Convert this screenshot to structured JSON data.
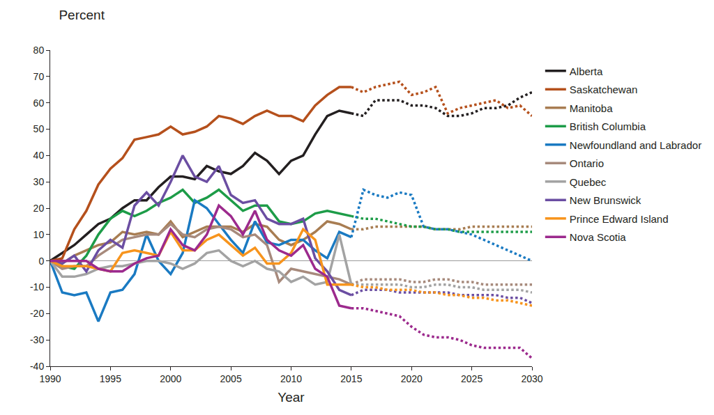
{
  "chart_data": {
    "type": "line",
    "title": "Percent",
    "x_label": "Year",
    "x": [
      1990,
      1991,
      1992,
      1993,
      1994,
      1995,
      1996,
      1997,
      1998,
      1999,
      2000,
      2001,
      2002,
      2003,
      2004,
      2005,
      2006,
      2007,
      2008,
      2009,
      2010,
      2011,
      2012,
      2013,
      2014,
      2015,
      2016,
      2017,
      2018,
      2019,
      2020,
      2021,
      2022,
      2023,
      2024,
      2025,
      2026,
      2027,
      2028,
      2029,
      2030
    ],
    "xlim": [
      1990,
      2030
    ],
    "xticks": [
      1990,
      1995,
      2000,
      2005,
      2010,
      2015,
      2020,
      2025,
      2030
    ],
    "ylim": [
      -40,
      80
    ],
    "yticks": [
      -40,
      -30,
      -20,
      -10,
      0,
      10,
      20,
      30,
      40,
      50,
      60,
      70,
      80
    ],
    "grid": false,
    "legend": "right",
    "series": [
      {
        "name": "Alberta",
        "color": "#231f20",
        "line_style": "solid",
        "values": [
          0,
          3,
          6,
          10,
          14,
          16,
          20,
          23,
          23,
          28,
          32,
          32,
          31,
          36,
          34,
          33,
          36,
          41,
          38,
          33,
          38,
          40,
          48,
          55,
          57,
          56,
          null,
          null,
          null,
          null,
          null,
          null,
          null,
          null,
          null,
          null,
          null,
          null,
          null,
          null,
          null
        ]
      },
      {
        "name": "Alberta",
        "color": "#231f20",
        "line_style": "dot",
        "values": [
          null,
          null,
          null,
          null,
          null,
          null,
          null,
          null,
          null,
          null,
          null,
          null,
          null,
          null,
          null,
          null,
          null,
          null,
          null,
          null,
          null,
          null,
          null,
          null,
          null,
          56,
          55,
          61,
          61,
          61,
          59,
          59,
          58,
          55,
          55,
          56,
          58,
          58,
          59,
          62,
          64
        ]
      },
      {
        "name": "Saskatchewan",
        "color": "#b5501c",
        "line_style": "solid",
        "values": [
          0,
          1,
          12,
          19,
          29,
          35,
          39,
          46,
          47,
          48,
          51,
          48,
          49,
          51,
          55,
          54,
          52,
          55,
          57,
          55,
          55,
          53,
          59,
          63,
          66,
          66,
          null,
          null,
          null,
          null,
          null,
          null,
          null,
          null,
          null,
          null,
          null,
          null,
          null,
          null,
          null
        ]
      },
      {
        "name": "Saskatchewan",
        "color": "#b5501c",
        "line_style": "dot",
        "values": [
          null,
          null,
          null,
          null,
          null,
          null,
          null,
          null,
          null,
          null,
          null,
          null,
          null,
          null,
          null,
          null,
          null,
          null,
          null,
          null,
          null,
          null,
          null,
          null,
          null,
          66,
          64,
          66,
          67,
          68,
          63,
          64,
          66,
          56,
          58,
          59,
          60,
          61,
          58,
          59,
          55
        ]
      },
      {
        "name": "Manitoba",
        "color": "#a87d52",
        "line_style": "solid",
        "values": [
          0,
          -1,
          2,
          4,
          6,
          7,
          11,
          10,
          11,
          10,
          15,
          9,
          11,
          13,
          13,
          13,
          11,
          14,
          13,
          8,
          6,
          8,
          11,
          15,
          14,
          12,
          null,
          null,
          null,
          null,
          null,
          null,
          null,
          null,
          null,
          null,
          null,
          null,
          null,
          null,
          null
        ]
      },
      {
        "name": "Manitoba",
        "color": "#a87d52",
        "line_style": "dot",
        "values": [
          null,
          null,
          null,
          null,
          null,
          null,
          null,
          null,
          null,
          null,
          null,
          null,
          null,
          null,
          null,
          null,
          null,
          null,
          null,
          null,
          null,
          null,
          null,
          null,
          null,
          12,
          12,
          13,
          13,
          13,
          13,
          13,
          12,
          12,
          12,
          13,
          13,
          13,
          13,
          13,
          13
        ]
      },
      {
        "name": "British Columbia",
        "color": "#1d9c48",
        "line_style": "solid",
        "values": [
          0,
          -2,
          -3,
          2,
          10,
          16,
          19,
          17,
          19,
          22,
          24,
          27,
          22,
          24,
          27,
          23,
          19,
          21,
          21,
          15,
          14,
          15,
          18,
          19,
          18,
          17,
          null,
          null,
          null,
          null,
          null,
          null,
          null,
          null,
          null,
          null,
          null,
          null,
          null,
          null,
          null
        ]
      },
      {
        "name": "British Columbia",
        "color": "#1d9c48",
        "line_style": "dot",
        "values": [
          null,
          null,
          null,
          null,
          null,
          null,
          null,
          null,
          null,
          null,
          null,
          null,
          null,
          null,
          null,
          null,
          null,
          null,
          null,
          null,
          null,
          null,
          null,
          null,
          null,
          17,
          16,
          16,
          15,
          14,
          13,
          13,
          12,
          12,
          11,
          11,
          11,
          11,
          11,
          11,
          11
        ]
      },
      {
        "name": "Newfoundland and Labrador",
        "color": "#1a7ac2",
        "line_style": "solid",
        "values": [
          0,
          -12,
          -13,
          -12,
          -23,
          -12,
          -11,
          -5,
          10,
          0,
          -5,
          3,
          23,
          20,
          14,
          8,
          3,
          15,
          7,
          6,
          8,
          8,
          4,
          1,
          11,
          9,
          null,
          null,
          null,
          null,
          null,
          null,
          null,
          null,
          null,
          null,
          null,
          null,
          null,
          null,
          null
        ]
      },
      {
        "name": "Newfoundland and Labrador",
        "color": "#1a7ac2",
        "line_style": "dot",
        "values": [
          null,
          null,
          null,
          null,
          null,
          null,
          null,
          null,
          null,
          null,
          null,
          null,
          null,
          null,
          null,
          null,
          null,
          null,
          null,
          null,
          null,
          null,
          null,
          null,
          null,
          9,
          27,
          25,
          24,
          26,
          25,
          13,
          12,
          12,
          11,
          10,
          8,
          6,
          4,
          2,
          0
        ]
      },
      {
        "name": "Ontario",
        "color": "#a78a7c",
        "line_style": "solid",
        "values": [
          0,
          -3,
          -2,
          -2,
          2,
          5,
          8,
          9,
          10,
          10,
          14,
          10,
          9,
          12,
          13,
          12,
          9,
          10,
          6,
          -8,
          -3,
          -4,
          -5,
          -6,
          -7,
          -9,
          null,
          null,
          null,
          null,
          null,
          null,
          null,
          null,
          null,
          null,
          null,
          null,
          null,
          null,
          null
        ]
      },
      {
        "name": "Ontario",
        "color": "#a78a7c",
        "line_style": "dot",
        "values": [
          null,
          null,
          null,
          null,
          null,
          null,
          null,
          null,
          null,
          null,
          null,
          null,
          null,
          null,
          null,
          null,
          null,
          null,
          null,
          null,
          null,
          null,
          null,
          null,
          null,
          -9,
          -7,
          -7,
          -7,
          -7,
          -8,
          -8,
          -7,
          -7,
          -8,
          -8,
          -9,
          -9,
          -9,
          -9,
          -9
        ]
      },
      {
        "name": "Quebec",
        "color": "#a3a3a3",
        "line_style": "solid",
        "values": [
          0,
          -6,
          -6,
          -5,
          -3,
          -2,
          -2,
          -1,
          0,
          0,
          -1,
          -3,
          -1,
          3,
          4,
          0,
          -2,
          0,
          -3,
          -4,
          -8,
          -6,
          -9,
          -8,
          10,
          -9,
          null,
          null,
          null,
          null,
          null,
          null,
          null,
          null,
          null,
          null,
          null,
          null,
          null,
          null,
          null
        ]
      },
      {
        "name": "Quebec",
        "color": "#a3a3a3",
        "line_style": "dot",
        "values": [
          null,
          null,
          null,
          null,
          null,
          null,
          null,
          null,
          null,
          null,
          null,
          null,
          null,
          null,
          null,
          null,
          null,
          null,
          null,
          null,
          null,
          null,
          null,
          null,
          null,
          -9,
          -9,
          -9,
          -9,
          -9,
          -10,
          -10,
          -9,
          -9,
          -10,
          -10,
          -11,
          -11,
          -11,
          -11,
          -12
        ]
      },
      {
        "name": "New Brunswick",
        "color": "#6b4ea2",
        "line_style": "solid",
        "values": [
          0,
          -1,
          2,
          -4,
          4,
          8,
          5,
          21,
          26,
          21,
          30,
          40,
          32,
          30,
          36,
          25,
          22,
          23,
          16,
          14,
          14,
          16,
          1,
          -4,
          -11,
          -13,
          null,
          null,
          null,
          null,
          null,
          null,
          null,
          null,
          null,
          null,
          null,
          null,
          null,
          null,
          null
        ]
      },
      {
        "name": "New Brunswick",
        "color": "#6b4ea2",
        "line_style": "dot",
        "values": [
          null,
          null,
          null,
          null,
          null,
          null,
          null,
          null,
          null,
          null,
          null,
          null,
          null,
          null,
          null,
          null,
          null,
          null,
          null,
          null,
          null,
          null,
          null,
          null,
          null,
          -13,
          -11,
          -11,
          -11,
          -12,
          -12,
          -12,
          -12,
          -12,
          -13,
          -13,
          -13,
          -13,
          -14,
          -14,
          -16
        ]
      },
      {
        "name": "Prince Edward Island",
        "color": "#f7941d",
        "line_style": "solid",
        "values": [
          0,
          -2,
          -2,
          -2,
          -3,
          -4,
          3,
          4,
          3,
          2,
          11,
          4,
          4,
          8,
          10,
          6,
          2,
          5,
          -1,
          -1,
          3,
          12,
          8,
          -9,
          -9,
          -9,
          null,
          null,
          null,
          null,
          null,
          null,
          null,
          null,
          null,
          null,
          null,
          null,
          null,
          null,
          null
        ]
      },
      {
        "name": "Prince Edward Island",
        "color": "#f7941d",
        "line_style": "dot",
        "values": [
          null,
          null,
          null,
          null,
          null,
          null,
          null,
          null,
          null,
          null,
          null,
          null,
          null,
          null,
          null,
          null,
          null,
          null,
          null,
          null,
          null,
          null,
          null,
          null,
          null,
          -9,
          -10,
          -10,
          -11,
          -11,
          -11,
          -12,
          -12,
          -13,
          -13,
          -14,
          -14,
          -15,
          -15,
          -16,
          -17
        ]
      },
      {
        "name": "Nova Scotia",
        "color": "#9c2a8d",
        "line_style": "solid",
        "values": [
          0,
          0,
          0,
          0,
          -3,
          -4,
          -4,
          -1,
          1,
          2,
          12,
          6,
          4,
          10,
          21,
          17,
          10,
          19,
          8,
          4,
          2,
          6,
          -3,
          -6,
          -17,
          -18,
          null,
          null,
          null,
          null,
          null,
          null,
          null,
          null,
          null,
          null,
          null,
          null,
          null,
          null,
          null
        ]
      },
      {
        "name": "Nova Scotia",
        "color": "#9c2a8d",
        "line_style": "dot",
        "values": [
          null,
          null,
          null,
          null,
          null,
          null,
          null,
          null,
          null,
          null,
          null,
          null,
          null,
          null,
          null,
          null,
          null,
          null,
          null,
          null,
          null,
          null,
          null,
          null,
          null,
          -18,
          -18,
          -19,
          -20,
          -21,
          -25,
          -28,
          -29,
          -29,
          -30,
          -32,
          -33,
          -33,
          -33,
          -33,
          -37
        ]
      }
    ]
  }
}
